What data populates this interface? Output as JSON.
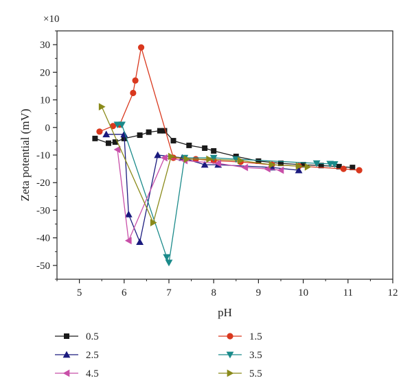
{
  "chart_data": {
    "type": "line",
    "title": "",
    "xlabel": "pH",
    "ylabel": "Zeta potential (mV)",
    "y_multiplier_label": "×10",
    "xlim": [
      4.5,
      12
    ],
    "ylim": [
      -55,
      35
    ],
    "x_ticks": [
      5,
      6,
      7,
      8,
      9,
      10,
      11,
      12
    ],
    "y_ticks": [
      30,
      20,
      10,
      0,
      -10,
      -20,
      -30,
      -40,
      -50
    ],
    "grid": false,
    "legend_position": "bottom",
    "series": [
      {
        "name": "0.5",
        "color": "#1a1a1a",
        "marker": "square",
        "points": [
          [
            5.35,
            -4
          ],
          [
            5.65,
            -5.7
          ],
          [
            5.8,
            -5.3
          ],
          [
            6.0,
            -4
          ],
          [
            6.35,
            -2.8
          ],
          [
            6.55,
            -1.7
          ],
          [
            6.8,
            -1.2
          ],
          [
            6.9,
            -1.2
          ],
          [
            7.1,
            -4.8
          ],
          [
            7.45,
            -6.5
          ],
          [
            7.8,
            -7.5
          ],
          [
            8.0,
            -8.5
          ],
          [
            8.5,
            -10.5
          ],
          [
            9.0,
            -12.2
          ],
          [
            9.5,
            -13
          ],
          [
            10.0,
            -13.5
          ],
          [
            10.4,
            -13.8
          ],
          [
            10.8,
            -14.2
          ],
          [
            11.1,
            -14.5
          ]
        ]
      },
      {
        "name": "1.5",
        "color": "#d9381e",
        "marker": "circle",
        "points": [
          [
            5.45,
            -1.5
          ],
          [
            5.75,
            0.5
          ],
          [
            5.9,
            1.0
          ],
          [
            6.2,
            12.5
          ],
          [
            6.25,
            17.0
          ],
          [
            6.38,
            29.0
          ],
          [
            7.1,
            -11
          ],
          [
            7.6,
            -11.5
          ],
          [
            8.0,
            -12
          ],
          [
            8.6,
            -12.5
          ],
          [
            9.3,
            -13.5
          ],
          [
            9.9,
            -14
          ],
          [
            10.9,
            -15
          ],
          [
            11.25,
            -15.5
          ]
        ]
      },
      {
        "name": "2.5",
        "color": "#1a1a7e",
        "marker": "triangle-up",
        "points": [
          [
            5.6,
            -2.5
          ],
          [
            6.0,
            -2.5
          ],
          [
            6.1,
            -31.5
          ],
          [
            6.35,
            -41.5
          ],
          [
            6.75,
            -10
          ],
          [
            7.3,
            -11
          ],
          [
            7.8,
            -13.5
          ],
          [
            8.1,
            -13.5
          ],
          [
            9.3,
            -14.5
          ],
          [
            9.9,
            -15.5
          ]
        ]
      },
      {
        "name": "3.5",
        "color": "#1a8a8a",
        "marker": "triangle-down",
        "points": [
          [
            5.85,
            1.0
          ],
          [
            5.95,
            1.0
          ],
          [
            6.95,
            -47
          ],
          [
            7.0,
            -49
          ],
          [
            7.35,
            -11
          ],
          [
            8.0,
            -11
          ],
          [
            8.5,
            -11.5
          ],
          [
            10.3,
            -13
          ],
          [
            10.6,
            -13.2
          ],
          [
            10.7,
            -13.3
          ]
        ]
      },
      {
        "name": "4.5",
        "color": "#c84fa8",
        "marker": "triangle-left",
        "points": [
          [
            5.85,
            -8
          ],
          [
            6.1,
            -41
          ],
          [
            6.9,
            -11
          ],
          [
            7.35,
            -12
          ],
          [
            8.1,
            -13
          ],
          [
            8.7,
            -14.5
          ],
          [
            9.2,
            -15
          ],
          [
            9.5,
            -15.5
          ]
        ]
      },
      {
        "name": "5.5",
        "color": "#8a8a1a",
        "marker": "triangle-right",
        "points": [
          [
            5.5,
            7.5
          ],
          [
            6.65,
            -34.5
          ],
          [
            7.05,
            -10.5
          ],
          [
            7.4,
            -11.5
          ],
          [
            7.9,
            -11.5
          ],
          [
            8.6,
            -12
          ],
          [
            9.3,
            -13.5
          ],
          [
            9.9,
            -14
          ],
          [
            10.1,
            -14.3
          ]
        ]
      }
    ]
  }
}
